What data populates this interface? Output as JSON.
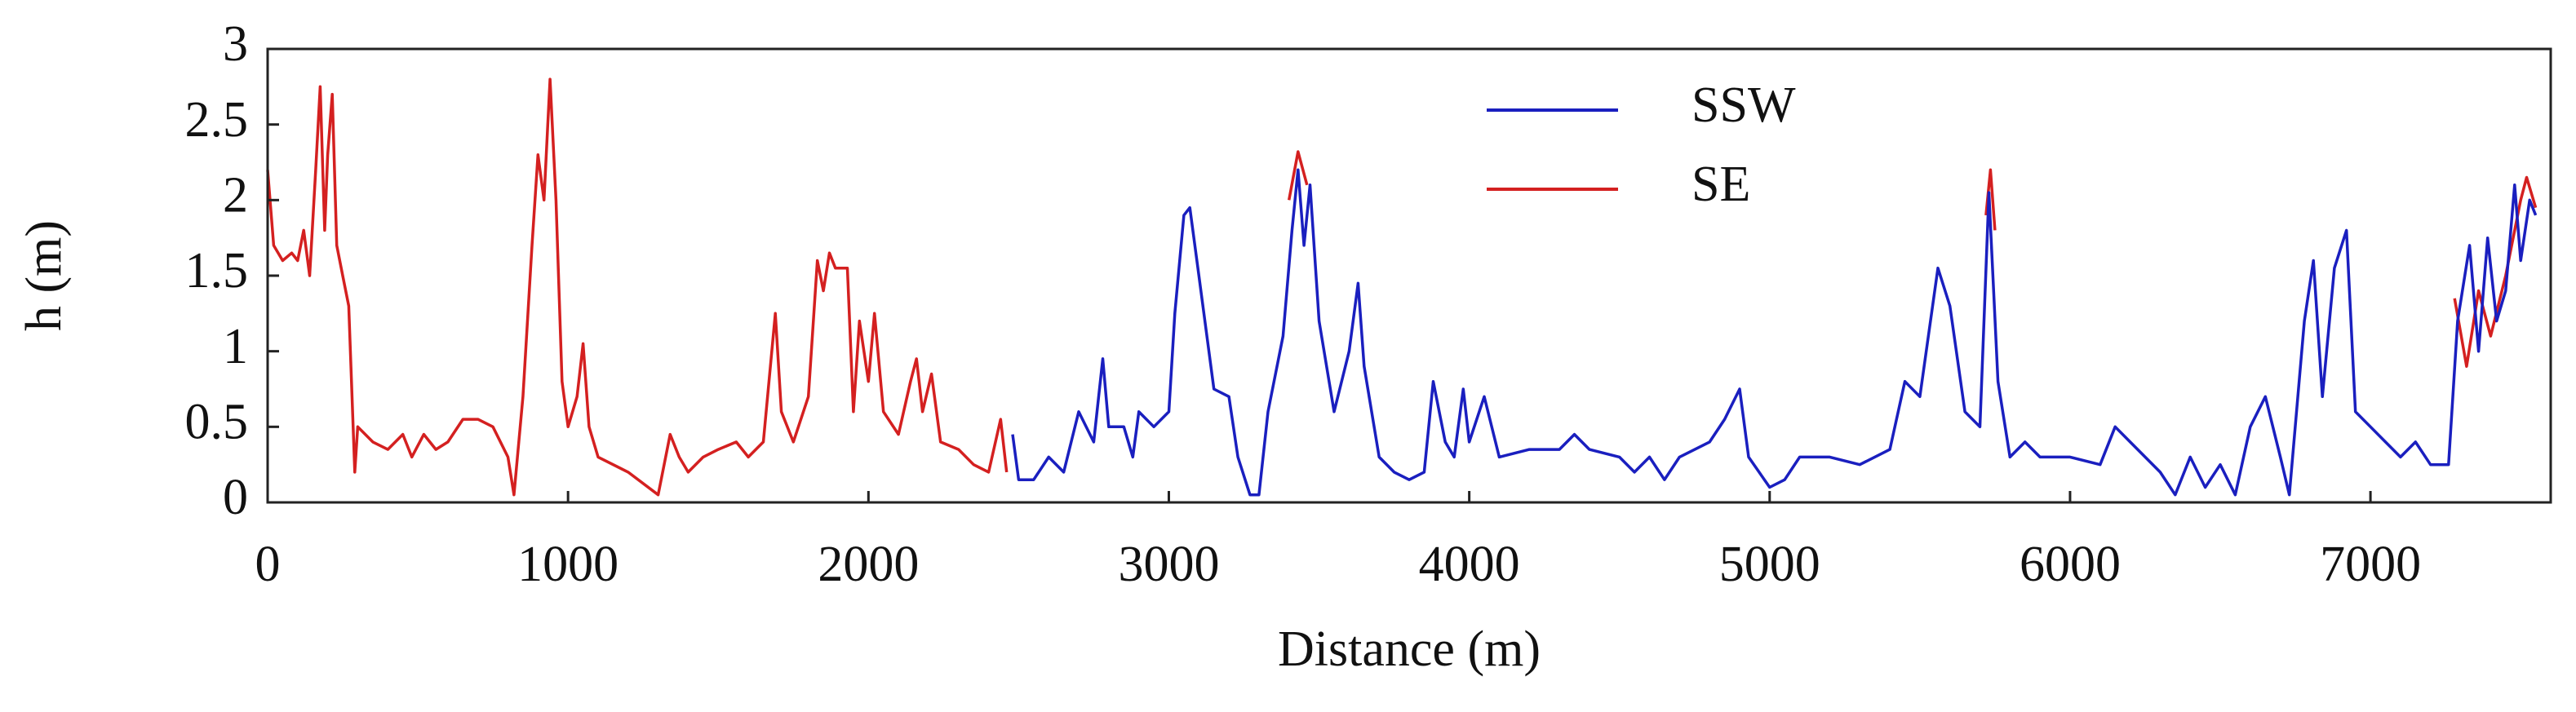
{
  "chart_data": {
    "type": "line",
    "xlabel": "Distance (m)",
    "ylabel": "h (m)",
    "xlim": [
      0,
      7600
    ],
    "ylim": [
      0,
      3
    ],
    "xticks": [
      0,
      1000,
      2000,
      3000,
      4000,
      5000,
      6000,
      7000
    ],
    "yticks": [
      0,
      0.5,
      1,
      1.5,
      2,
      2.5,
      3
    ],
    "legend": "upper center",
    "series": [
      {
        "name": "SSW",
        "color": "#1a1fbf",
        "x": [
          2480,
          2500,
          2550,
          2600,
          2650,
          2700,
          2750,
          2780,
          2800,
          2850,
          2880,
          2900,
          2950,
          3000,
          3020,
          3050,
          3070,
          3100,
          3150,
          3200,
          3230,
          3270,
          3300,
          3330,
          3380,
          3410,
          3430,
          3450,
          3470,
          3500,
          3550,
          3600,
          3630,
          3650,
          3700,
          3750,
          3800,
          3850,
          3880,
          3920,
          3950,
          3980,
          4000,
          4050,
          4100,
          4200,
          4300,
          4350,
          4400,
          4500,
          4550,
          4600,
          4650,
          4700,
          4800,
          4850,
          4900,
          4930,
          5000,
          5050,
          5100,
          5200,
          5300,
          5400,
          5450,
          5500,
          5560,
          5600,
          5650,
          5700,
          5730,
          5760,
          5800,
          5850,
          5900,
          6000,
          6100,
          6150,
          6200,
          6300,
          6350,
          6400,
          6450,
          6500,
          6550,
          6600,
          6650,
          6700,
          6730,
          6780,
          6810,
          6840,
          6880,
          6920,
          6950,
          7000,
          7050,
          7100,
          7150,
          7200,
          7260,
          7290,
          7330,
          7360,
          7390,
          7420,
          7450,
          7480,
          7500,
          7530,
          7550
        ],
        "values": [
          0.45,
          0.15,
          0.15,
          0.3,
          0.2,
          0.6,
          0.4,
          0.95,
          0.5,
          0.5,
          0.3,
          0.6,
          0.5,
          0.6,
          1.25,
          1.9,
          1.95,
          1.5,
          0.75,
          0.7,
          0.3,
          0.05,
          0.05,
          0.6,
          1.1,
          1.8,
          2.2,
          1.7,
          2.1,
          1.2,
          0.6,
          1.0,
          1.45,
          0.9,
          0.3,
          0.2,
          0.15,
          0.2,
          0.8,
          0.4,
          0.3,
          0.75,
          0.4,
          0.7,
          0.3,
          0.35,
          0.35,
          0.45,
          0.35,
          0.3,
          0.2,
          0.3,
          0.15,
          0.3,
          0.4,
          0.55,
          0.75,
          0.3,
          0.1,
          0.15,
          0.3,
          0.3,
          0.25,
          0.35,
          0.8,
          0.7,
          1.55,
          1.3,
          0.6,
          0.5,
          2.05,
          0.8,
          0.3,
          0.4,
          0.3,
          0.3,
          0.25,
          0.5,
          0.4,
          0.2,
          0.05,
          0.3,
          0.1,
          0.25,
          0.05,
          0.5,
          0.7,
          0.3,
          0.05,
          1.2,
          1.6,
          0.7,
          1.55,
          1.8,
          0.6,
          0.5,
          0.4,
          0.3,
          0.4,
          0.25,
          0.25,
          1.2,
          1.7,
          1.0,
          1.75,
          1.2,
          1.4,
          2.1,
          1.6,
          2.0,
          1.9
        ]
      },
      {
        "name": "SE",
        "color": "#d42020",
        "x": [
          0,
          20,
          50,
          80,
          100,
          120,
          140,
          160,
          175,
          190,
          200,
          215,
          230,
          250,
          270,
          290,
          300,
          350,
          400,
          450,
          480,
          520,
          560,
          600,
          650,
          700,
          750,
          800,
          820,
          850,
          880,
          900,
          920,
          940,
          960,
          980,
          1000,
          1030,
          1050,
          1070,
          1100,
          1200,
          1300,
          1340,
          1370,
          1400,
          1450,
          1500,
          1560,
          1600,
          1650,
          1690,
          1710,
          1750,
          1800,
          1830,
          1850,
          1870,
          1890,
          1930,
          1950,
          1970,
          2000,
          2020,
          2050,
          2100,
          2140,
          2160,
          2180,
          2210,
          2240,
          2300,
          2350,
          2400,
          2440,
          2460,
          3000,
          3400,
          3430,
          3460,
          5000,
          5720,
          5735,
          5750,
          7000,
          7280,
          7320,
          7360,
          7400,
          7450,
          7500,
          7520,
          7550
        ],
        "values": [
          2.2,
          1.7,
          1.6,
          1.65,
          1.6,
          1.8,
          1.5,
          2.2,
          2.75,
          1.8,
          2.3,
          2.7,
          1.7,
          1.5,
          1.3,
          0.2,
          0.5,
          0.4,
          0.35,
          0.45,
          0.3,
          0.45,
          0.35,
          0.4,
          0.55,
          0.55,
          0.5,
          0.3,
          0.05,
          0.7,
          1.7,
          2.3,
          2.0,
          2.8,
          2.0,
          0.8,
          0.5,
          0.7,
          1.05,
          0.5,
          0.3,
          0.2,
          0.05,
          0.45,
          0.3,
          0.2,
          0.3,
          0.35,
          0.4,
          0.3,
          0.4,
          1.25,
          0.6,
          0.4,
          0.7,
          1.6,
          1.4,
          1.65,
          1.55,
          1.55,
          0.6,
          1.2,
          0.8,
          1.25,
          0.6,
          0.45,
          0.8,
          0.95,
          0.6,
          0.85,
          0.4,
          0.35,
          0.25,
          0.2,
          0.55,
          0.2,
          null,
          2.0,
          2.32,
          2.1,
          null,
          1.9,
          2.2,
          1.8,
          null,
          1.35,
          0.9,
          1.4,
          1.1,
          1.5,
          2.0,
          2.15,
          1.95
        ]
      }
    ]
  }
}
